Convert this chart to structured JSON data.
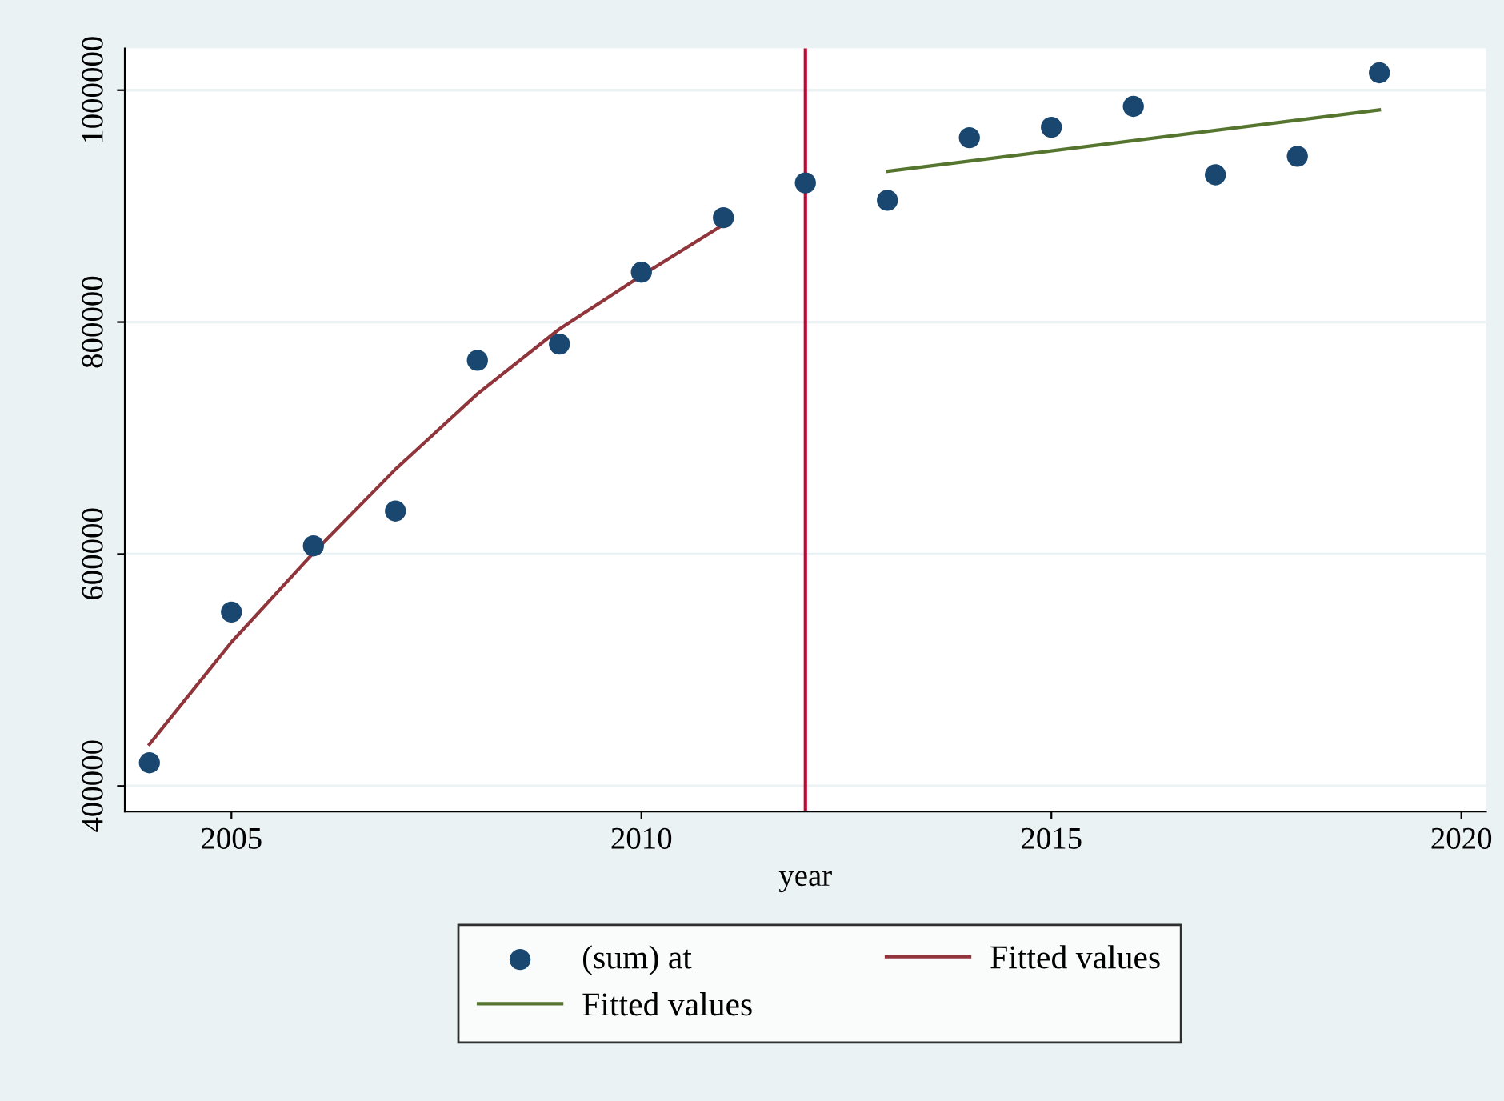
{
  "chart_data": {
    "type": "scatter",
    "xlabel": "year",
    "xlim": [
      2003.7,
      2020.3
    ],
    "xticks": [
      2005,
      2010,
      2015,
      2020
    ],
    "ylim": [
      378000,
      1036000
    ],
    "yticks": [
      400000,
      600000,
      800000,
      1000000
    ],
    "grid": "y",
    "legend": "bottom",
    "ref_lines": [
      {
        "axis": "x",
        "value": 2012,
        "color": "#c10534",
        "line_style": "solid"
      }
    ],
    "series": [
      {
        "name": "(sum) at",
        "marker": "circle",
        "color": "#1a476f",
        "x": [
          2004,
          2005,
          2006,
          2007,
          2008,
          2009,
          2010,
          2011,
          2012,
          2013,
          2014,
          2015,
          2016,
          2017,
          2018,
          2019
        ],
        "values": [
          420000,
          550000,
          607000,
          637000,
          767000,
          781000,
          843000,
          890000,
          920000,
          905000,
          959000,
          968000,
          986000,
          927000,
          943000,
          1015000
        ]
      },
      {
        "name": "Fitted values",
        "type": "line",
        "color": "#90353b",
        "x": [
          2004,
          2005,
          2006,
          2007,
          2008,
          2009,
          2010,
          2011
        ],
        "values": [
          436000,
          524000,
          601000,
          673000,
          738000,
          794000,
          840000,
          884000
        ]
      },
      {
        "name": "Fitted values",
        "type": "line",
        "color": "#55752f",
        "x": [
          2013,
          2019
        ],
        "values": [
          930000,
          983000
        ]
      }
    ]
  }
}
